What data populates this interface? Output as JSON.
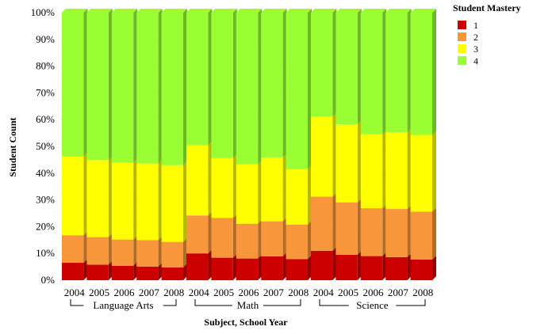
{
  "chart_data": {
    "type": "bar",
    "stacked": true,
    "percent": true,
    "title": "",
    "xlabel": "Subject, School Year",
    "ylabel": "Student Count",
    "ylim": [
      0,
      100
    ],
    "yticks": [
      "0%",
      "10%",
      "20%",
      "30%",
      "40%",
      "50%",
      "60%",
      "70%",
      "80%",
      "90%",
      "100%"
    ],
    "groups": [
      {
        "name": "Language Arts",
        "categories": [
          "2004",
          "2005",
          "2006",
          "2007",
          "2008"
        ]
      },
      {
        "name": "Math",
        "categories": [
          "2004",
          "2005",
          "2006",
          "2007",
          "2008"
        ]
      },
      {
        "name": "Science",
        "categories": [
          "2004",
          "2005",
          "2006",
          "2007",
          "2008"
        ]
      }
    ],
    "legend_title": "Student Mastery",
    "legend_position": "top-right",
    "series": [
      {
        "name": "1",
        "color": "#cc0000",
        "values": [
          6.5,
          5.8,
          5.4,
          5.1,
          4.8,
          10.0,
          8.4,
          8.1,
          8.9,
          7.9,
          11.0,
          9.5,
          9.0,
          8.6,
          7.7
        ]
      },
      {
        "name": "2",
        "color": "#f7963a",
        "values": [
          10.3,
          10.3,
          9.8,
          9.9,
          9.5,
          14.2,
          14.9,
          13.0,
          13.1,
          12.9,
          20.2,
          19.6,
          17.9,
          18.0,
          17.9
        ]
      },
      {
        "name": "3",
        "color": "#ffff00",
        "values": [
          29.5,
          28.8,
          28.8,
          28.6,
          28.7,
          26.2,
          22.3,
          22.2,
          23.9,
          20.7,
          30.0,
          29.2,
          27.7,
          28.7,
          28.7
        ]
      },
      {
        "name": "4",
        "color": "#99ff33",
        "values": [
          53.7,
          55.1,
          56.0,
          56.4,
          57.0,
          49.6,
          54.4,
          56.7,
          54.1,
          58.5,
          38.8,
          41.7,
          45.4,
          44.7,
          45.7
        ]
      }
    ]
  }
}
